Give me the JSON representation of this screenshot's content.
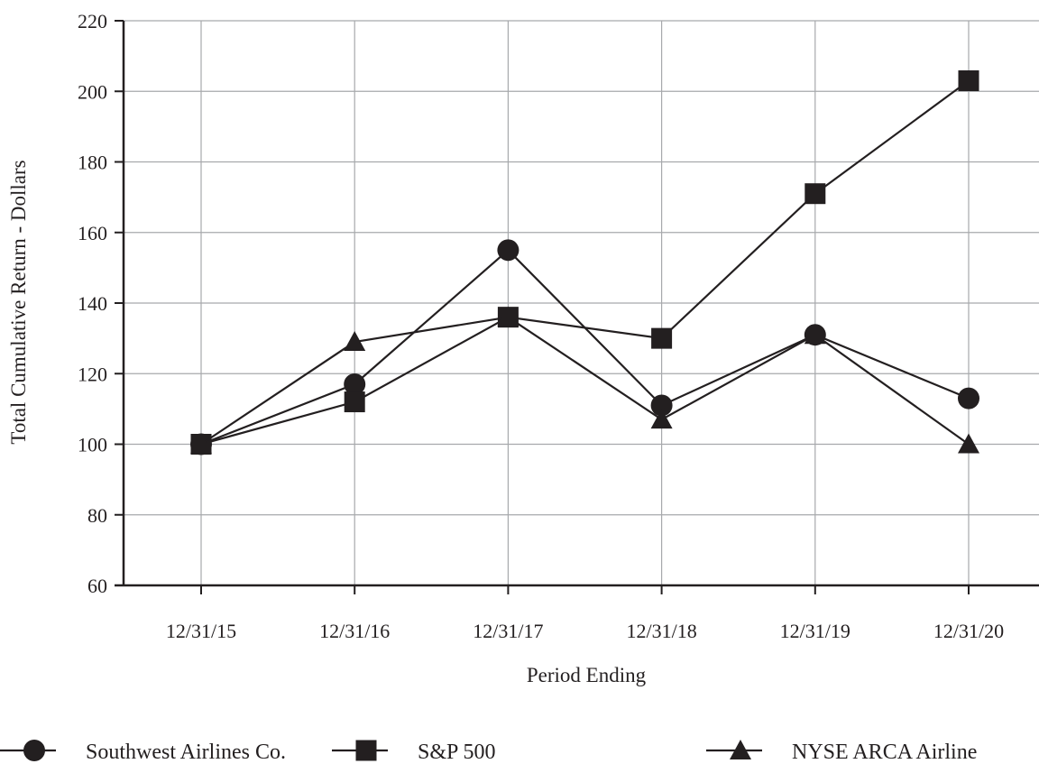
{
  "chart_data": {
    "type": "line",
    "xlabel": "Period Ending",
    "ylabel": "Total Cumulative Return - Dollars",
    "categories": [
      "12/31/15",
      "12/31/16",
      "12/31/17",
      "12/31/18",
      "12/31/19",
      "12/31/20"
    ],
    "ylim": [
      60,
      220
    ],
    "yticks": [
      60,
      80,
      100,
      120,
      140,
      160,
      180,
      200,
      220
    ],
    "grid": true,
    "legend_position": "bottom",
    "series": [
      {
        "name": "Southwest Airlines Co.",
        "marker": "circle",
        "values": [
          100,
          117,
          155,
          111,
          131,
          113
        ]
      },
      {
        "name": "S&P 500",
        "marker": "square",
        "values": [
          100,
          112,
          136,
          130,
          171,
          203
        ]
      },
      {
        "name": "NYSE ARCA Airline",
        "marker": "triangle",
        "values": [
          100,
          129,
          136,
          107,
          131,
          100
        ]
      }
    ],
    "colors": {
      "line": "#231f20",
      "grid": "#a7a9ac",
      "axis": "#231f20"
    }
  }
}
